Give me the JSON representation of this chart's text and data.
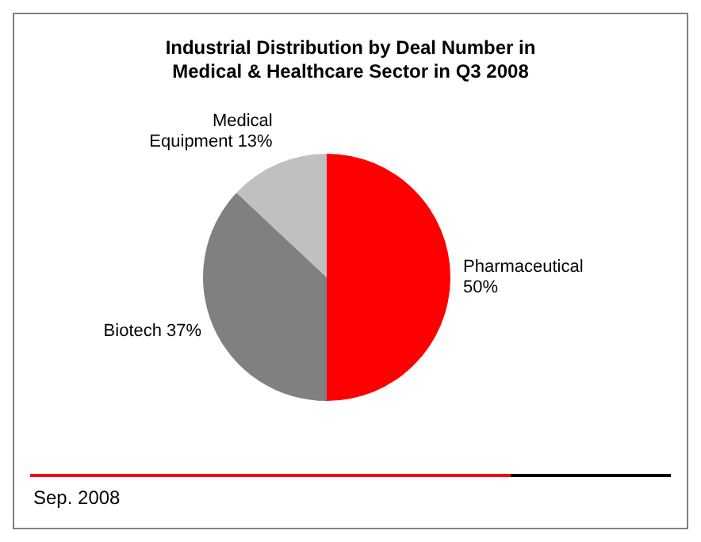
{
  "chart_data": {
    "type": "pie",
    "title": "Industrial Distribution by Deal Number in Medical & Healthcare Sector in Q3 2008",
    "categories": [
      "Pharmaceutical",
      "Biotech",
      "Medical Equipment"
    ],
    "values": [
      50,
      37,
      13
    ],
    "colors": [
      "#ff0000",
      "#808080",
      "#c0c0c0"
    ],
    "legend": false,
    "value_labels": [
      "50%",
      "37%",
      "13%"
    ],
    "annotations": [
      "Sep. 2008"
    ]
  }
}
